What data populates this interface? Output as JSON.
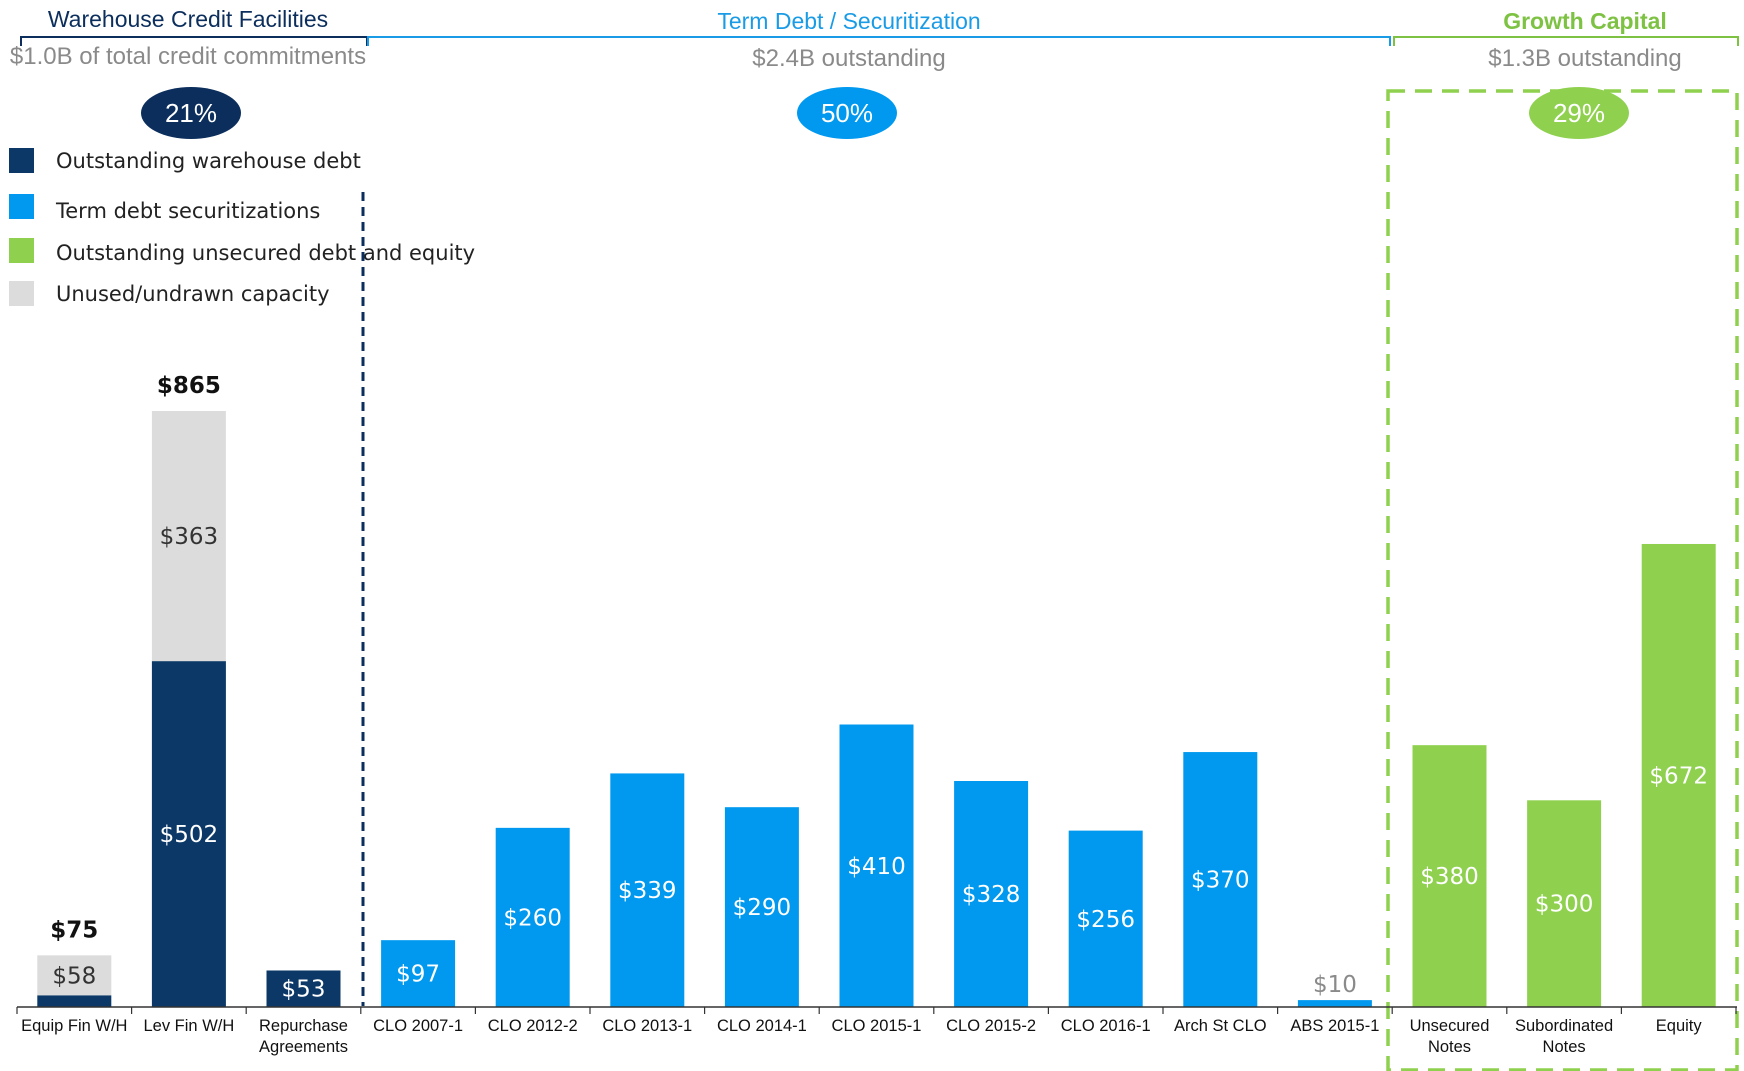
{
  "sections": [
    {
      "title": "Warehouse Credit Facilities",
      "subtitle": "$1.0B of total credit commitments",
      "pct": "21%",
      "color": "#0b2e5c",
      "pct_color": "#0b2e5c"
    },
    {
      "title": "Term Debt / Securitization",
      "subtitle": "$2.4B outstanding",
      "pct": "50%",
      "color": "#1a9be6",
      "pct_color": "#0099ef"
    },
    {
      "title": "Growth Capital",
      "subtitle": "$1.3B outstanding",
      "pct": "29%",
      "color": "#7dc242",
      "pct_color": "#8fd14f"
    }
  ],
  "legend": [
    {
      "label": "Outstanding warehouse debt",
      "color": "#0b3866"
    },
    {
      "label": "Term debt securitizations",
      "color": "#0099ef"
    },
    {
      "label": "Outstanding unsecured debt and equity",
      "color": "#8fd14f"
    },
    {
      "label": "Unused/undrawn capacity",
      "color": "#dcdcdc"
    }
  ],
  "chart_data": {
    "type": "bar",
    "stacked": true,
    "categories": [
      "Equip Fin W/H",
      "Lev Fin W/H",
      "Repurchase Agreements",
      "CLO 2007-1",
      "CLO 2012-2",
      "CLO 2013-1",
      "CLO 2014-1",
      "CLO 2015-1",
      "CLO 2015-2",
      "CLO 2016-1",
      "Arch St CLO",
      "ABS 2015-1",
      "Unsecured Notes",
      "Subordinated Notes",
      "Equity"
    ],
    "category_lines": [
      [
        "Equip Fin W/H"
      ],
      [
        "Lev Fin W/H"
      ],
      [
        "Repurchase",
        "Agreements"
      ],
      [
        "CLO 2007-1"
      ],
      [
        "CLO 2012-2"
      ],
      [
        "CLO 2013-1"
      ],
      [
        "CLO 2014-1"
      ],
      [
        "CLO 2015-1"
      ],
      [
        "CLO 2015-2"
      ],
      [
        "CLO 2016-1"
      ],
      [
        "Arch St CLO"
      ],
      [
        "ABS 2015-1"
      ],
      [
        "Unsecured",
        "Notes"
      ],
      [
        "Subordinated",
        "Notes"
      ],
      [
        "Equity"
      ]
    ],
    "series": [
      {
        "name": "Outstanding warehouse debt",
        "color": "#0b3866",
        "label_color": "#ffffff",
        "values": [
          17,
          502,
          53,
          0,
          0,
          0,
          0,
          0,
          0,
          0,
          0,
          0,
          0,
          0,
          0
        ],
        "labels": [
          "",
          "$502",
          "$53",
          "",
          "",
          "",
          "",
          "",
          "",
          "",
          "",
          "",
          "",
          "",
          ""
        ]
      },
      {
        "name": "Term debt securitizations",
        "color": "#0099ef",
        "label_color": "#ffffff",
        "values": [
          0,
          0,
          0,
          97,
          260,
          339,
          290,
          410,
          328,
          256,
          370,
          10,
          0,
          0,
          0
        ],
        "labels": [
          "",
          "",
          "",
          "$97",
          "$260",
          "$339",
          "$290",
          "$410",
          "$328",
          "$256",
          "$370",
          "$10",
          "",
          "",
          ""
        ]
      },
      {
        "name": "Outstanding unsecured debt and equity",
        "color": "#8fd14f",
        "label_color": "#ffffff",
        "values": [
          0,
          0,
          0,
          0,
          0,
          0,
          0,
          0,
          0,
          0,
          0,
          0,
          380,
          300,
          672
        ],
        "labels": [
          "",
          "",
          "",
          "",
          "",
          "",
          "",
          "",
          "",
          "",
          "",
          "",
          "$380",
          "$300",
          "$672"
        ]
      },
      {
        "name": "Unused/undrawn capacity",
        "color": "#dcdcdc",
        "label_color": "#333333",
        "values": [
          58,
          363,
          0,
          0,
          0,
          0,
          0,
          0,
          0,
          0,
          0,
          0,
          0,
          0,
          0
        ],
        "labels": [
          "$58",
          "$363",
          "",
          "",
          "",
          "",
          "",
          "",
          "",
          "",
          "",
          "",
          "",
          "",
          ""
        ]
      }
    ],
    "totals": [
      "$75",
      "$865",
      "",
      "",
      "",
      "",
      "",
      "",
      "",
      "",
      "",
      "",
      "",
      "",
      ""
    ],
    "ylim": [
      0,
      865
    ],
    "grid": false,
    "legend_position": "top-left"
  }
}
